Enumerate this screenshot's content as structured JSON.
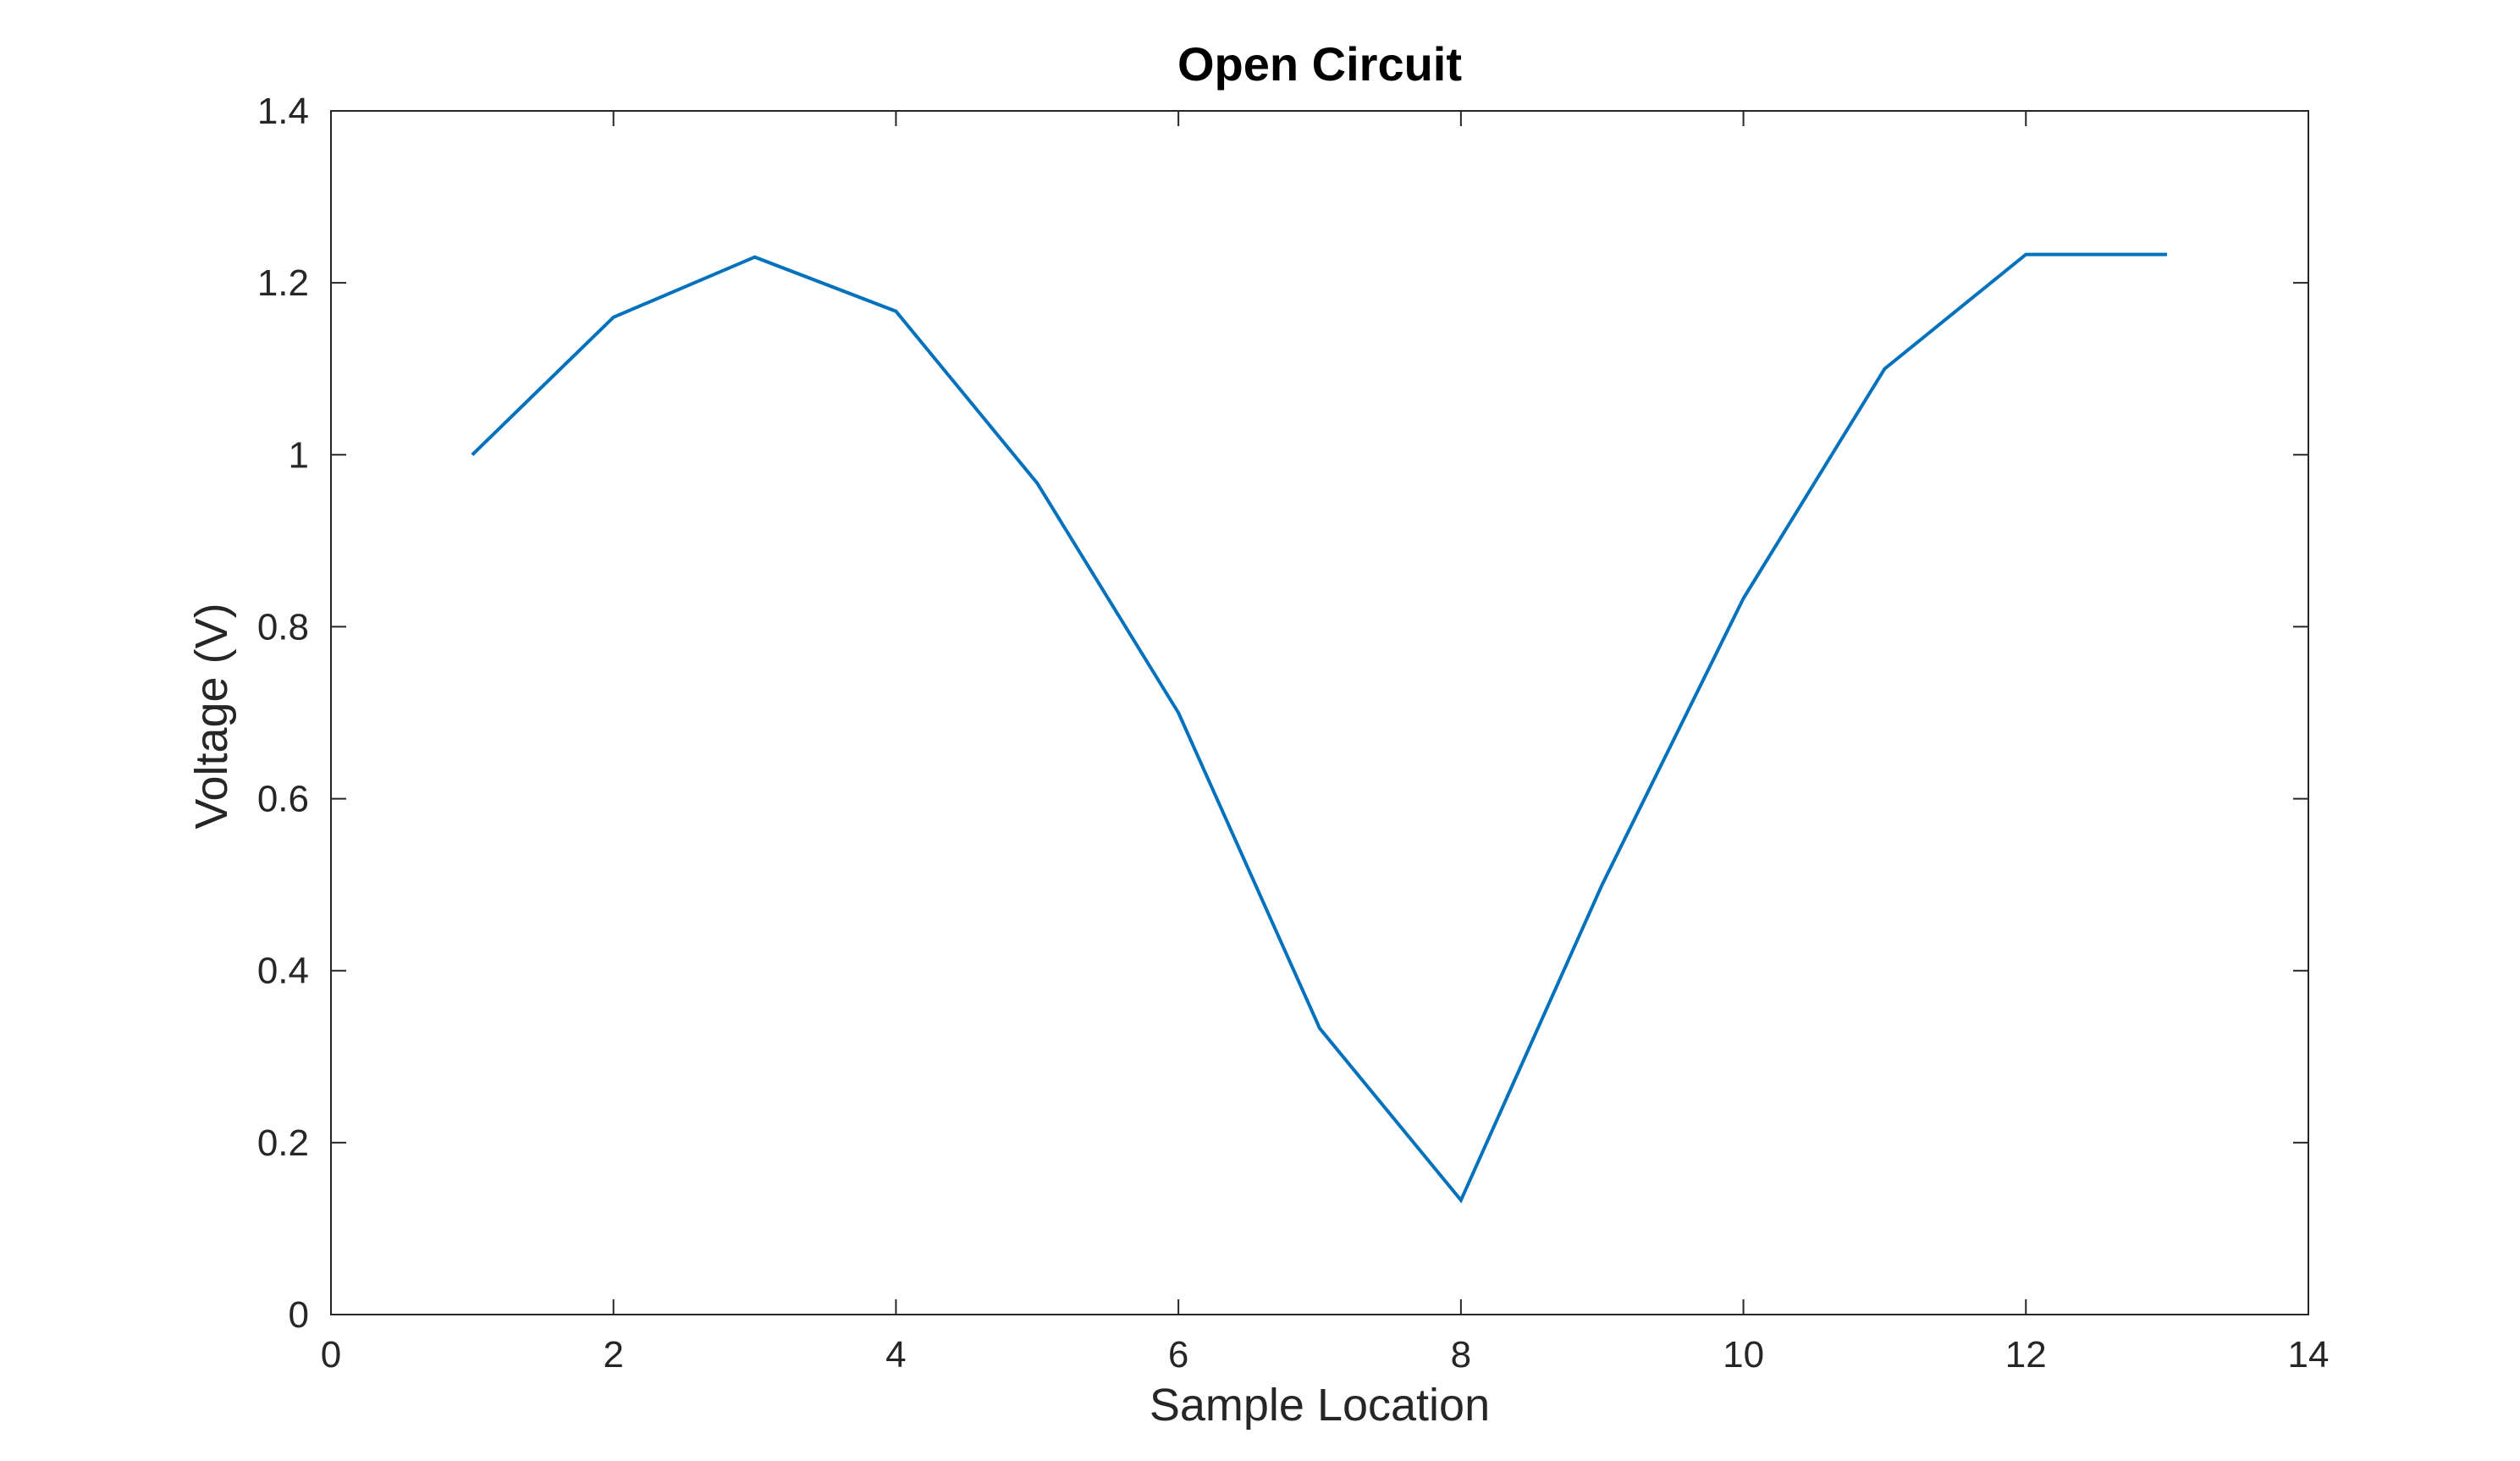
{
  "chart_data": {
    "type": "line",
    "title": "Open Circuit",
    "xlabel": "Sample Location",
    "ylabel": "Voltage (V)",
    "xlim": [
      0,
      14
    ],
    "ylim": [
      0,
      1.4
    ],
    "x_ticks": [
      "0",
      "2",
      "4",
      "6",
      "8",
      "10",
      "12",
      "14"
    ],
    "y_ticks": [
      "0",
      "0.2",
      "0.4",
      "0.6",
      "0.8",
      "1",
      "1.2",
      "1.4"
    ],
    "grid": false,
    "series": [
      {
        "x": [
          1,
          2,
          3,
          4,
          5,
          6,
          7,
          8,
          9,
          10,
          11,
          12,
          13
        ],
        "values": [
          1.0,
          1.16,
          1.23,
          1.167,
          0.967,
          0.7,
          0.333,
          0.133,
          0.5,
          0.833,
          1.1,
          1.233,
          1.233
        ]
      }
    ],
    "colors": {
      "line": "#0072BD",
      "axes": "#262626"
    }
  }
}
